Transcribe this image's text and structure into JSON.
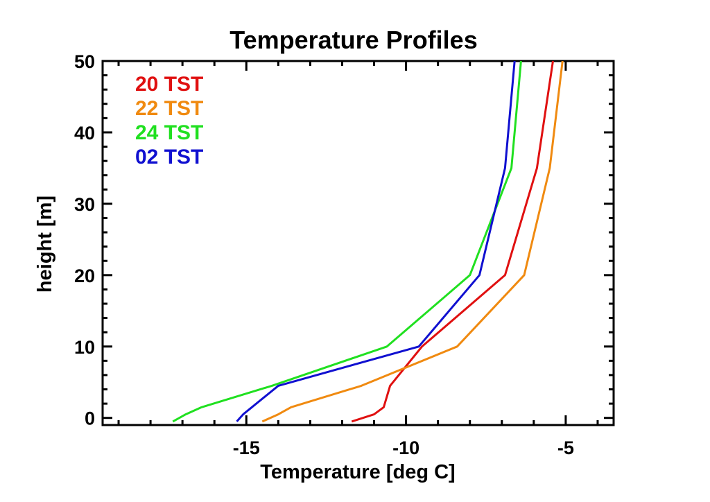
{
  "chart_data": {
    "type": "line",
    "title": "Temperature Profiles",
    "xlabel": "Temperature [deg C]",
    "ylabel": "height [m]",
    "xlim": [
      -19.5,
      -3.5
    ],
    "ylim": [
      -1,
      50
    ],
    "x_ticks": [
      -15,
      -10,
      -5
    ],
    "x_tick_labels": [
      "-15",
      "-10",
      "-5"
    ],
    "y_ticks": [
      0,
      10,
      20,
      30,
      40,
      50
    ],
    "y_tick_labels": [
      "0",
      "10",
      "20",
      "30",
      "40",
      "50"
    ],
    "grid": false,
    "legend_position": "top-left",
    "series": [
      {
        "name": "20 TST",
        "color": "#e01010",
        "points": [
          [
            -11.7,
            -0.5
          ],
          [
            -11.0,
            0.5
          ],
          [
            -10.7,
            1.5
          ],
          [
            -10.5,
            4.5
          ],
          [
            -9.5,
            10
          ],
          [
            -6.9,
            20
          ],
          [
            -5.9,
            35
          ],
          [
            -5.4,
            50
          ]
        ]
      },
      {
        "name": "22 TST",
        "color": "#f08a10",
        "points": [
          [
            -14.5,
            -0.5
          ],
          [
            -14.0,
            0.5
          ],
          [
            -13.6,
            1.5
          ],
          [
            -11.4,
            4.5
          ],
          [
            -8.4,
            10
          ],
          [
            -6.3,
            20
          ],
          [
            -5.5,
            35
          ],
          [
            -5.1,
            50
          ]
        ]
      },
      {
        "name": "24 TST",
        "color": "#20e020",
        "points": [
          [
            -17.3,
            -0.5
          ],
          [
            -16.9,
            0.5
          ],
          [
            -16.4,
            1.5
          ],
          [
            -14.2,
            4.5
          ],
          [
            -10.6,
            10
          ],
          [
            -8.0,
            20
          ],
          [
            -6.7,
            35
          ],
          [
            -6.4,
            50
          ]
        ]
      },
      {
        "name": "02 TST",
        "color": "#1010d0",
        "points": [
          [
            -15.3,
            -0.5
          ],
          [
            -15.1,
            0.5
          ],
          [
            -14.0,
            4.5
          ],
          [
            -9.6,
            10
          ],
          [
            -7.7,
            20
          ],
          [
            -6.9,
            35
          ],
          [
            -6.6,
            50
          ]
        ]
      }
    ]
  }
}
